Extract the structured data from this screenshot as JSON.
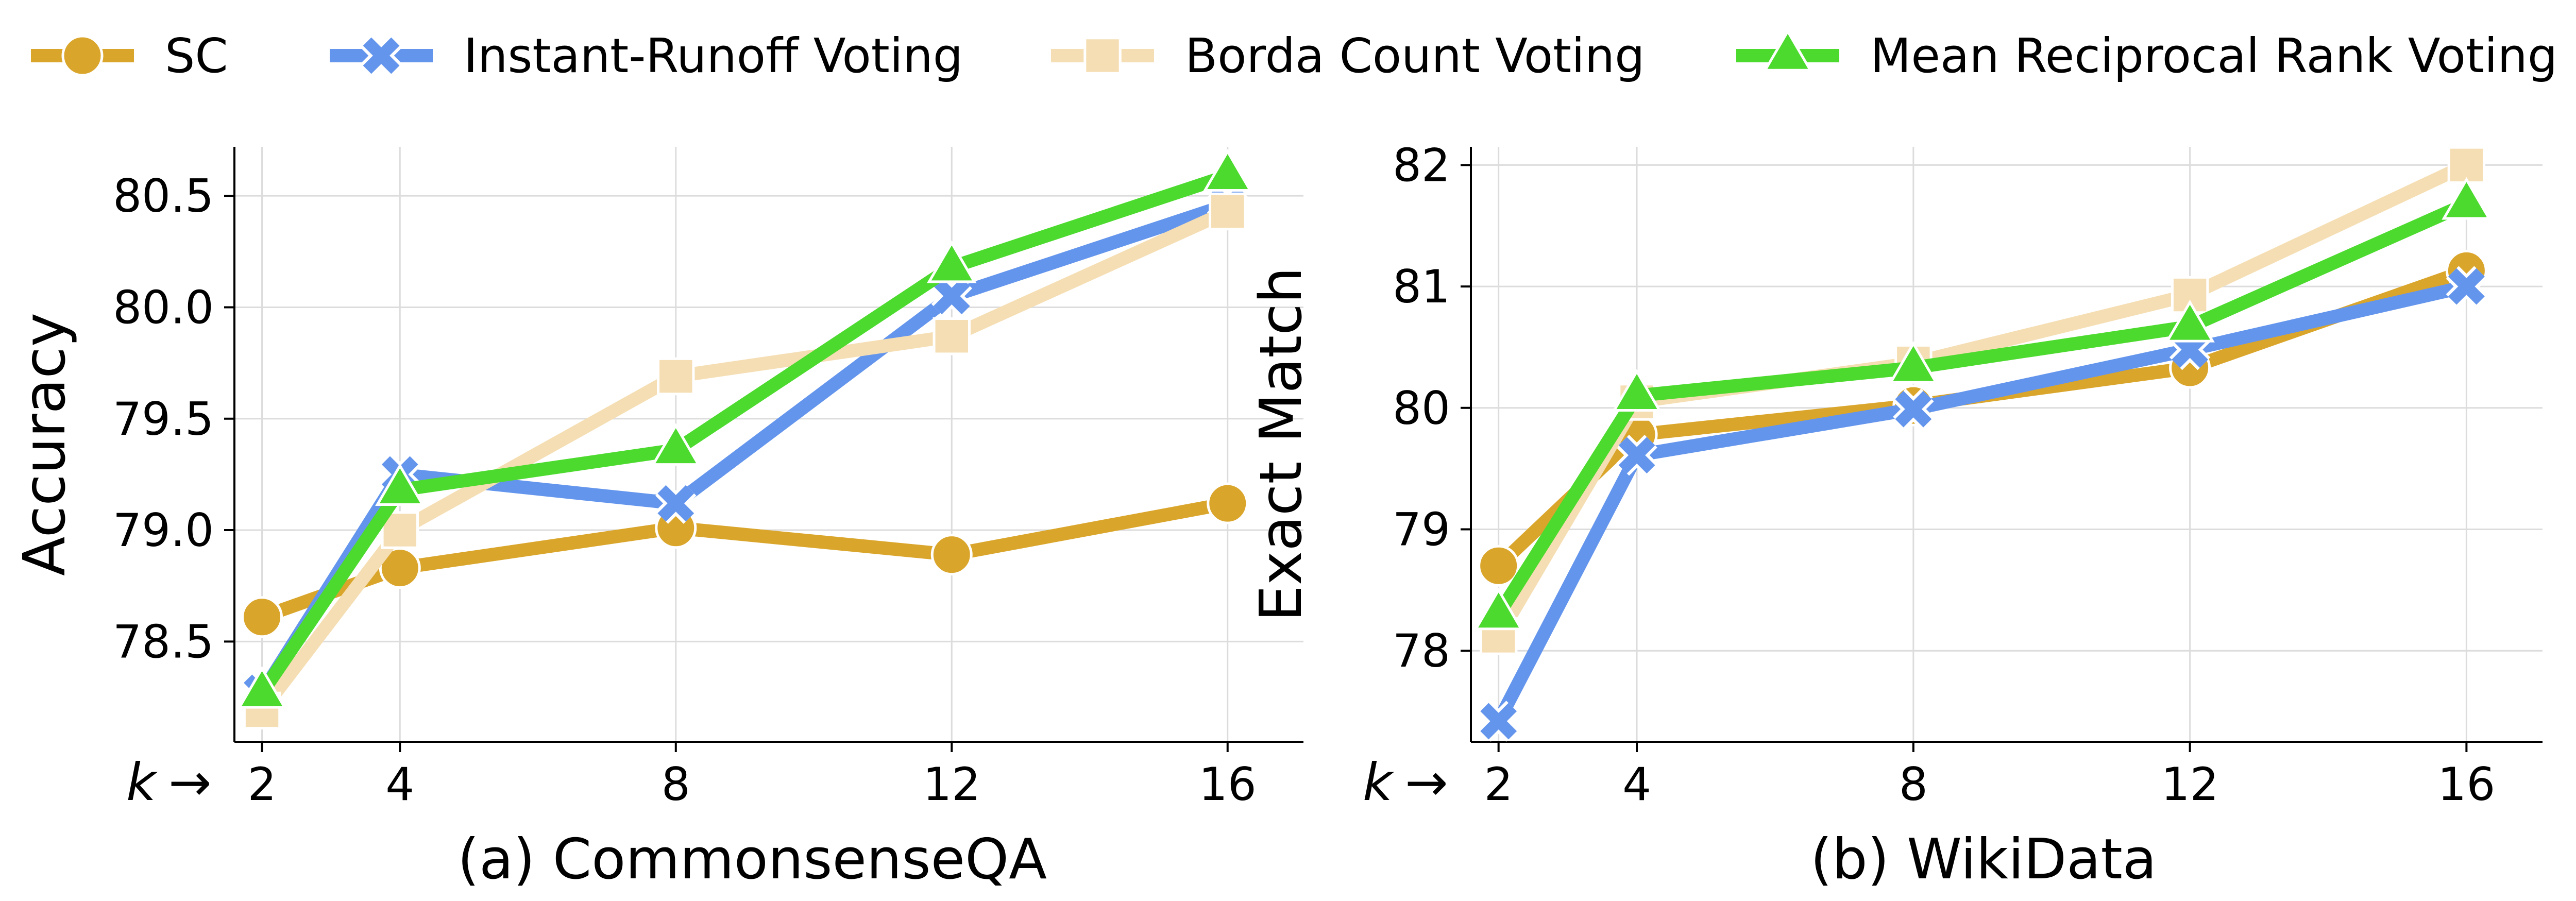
{
  "legend": [
    {
      "label": "SC",
      "color": "#DAA52B",
      "marker": "circle"
    },
    {
      "label": "Instant-Runoff Voting",
      "color": "#6495ED",
      "marker": "x"
    },
    {
      "label": "Borda Count Voting",
      "color": "#F5DEB3",
      "marker": "square"
    },
    {
      "label": "Mean Reciprocal Rank Voting",
      "color": "#4CDA2E",
      "marker": "triangle"
    }
  ],
  "k_label": "k",
  "k_arrow": "→",
  "chart_data": [
    {
      "type": "line",
      "caption": "(a) CommonsenseQA",
      "xlabel": "",
      "ylabel": "Accuracy",
      "x": [
        2,
        4,
        8,
        12,
        16
      ],
      "xticks": [
        "2",
        "4",
        "8",
        "12",
        "16"
      ],
      "xlim": [
        1.6,
        17.1
      ],
      "ylim": [
        78.05,
        80.72
      ],
      "yticks": [
        "78.5",
        "79.0",
        "79.5",
        "80.0",
        "80.5"
      ],
      "ytick_values": [
        78.5,
        79.0,
        79.5,
        80.0,
        80.5
      ],
      "grid": true,
      "series": [
        {
          "name": "SC",
          "values": [
            78.61,
            78.83,
            79.01,
            78.89,
            79.12
          ]
        },
        {
          "name": "Instant-Runoff Voting",
          "values": [
            78.27,
            79.25,
            79.12,
            80.05,
            80.46
          ]
        },
        {
          "name": "Borda Count Voting",
          "values": [
            78.19,
            79.0,
            79.69,
            79.87,
            80.43
          ]
        },
        {
          "name": "Mean Reciprocal Rank Voting",
          "values": [
            78.27,
            79.18,
            79.36,
            80.18,
            80.59
          ]
        }
      ]
    },
    {
      "type": "line",
      "caption": "(b) WikiData",
      "xlabel": "",
      "ylabel": "Exact Match",
      "x": [
        2,
        4,
        8,
        12,
        16
      ],
      "xticks": [
        "2",
        "4",
        "8",
        "12",
        "16"
      ],
      "xlim": [
        1.6,
        17.1
      ],
      "ylim": [
        77.25,
        82.15
      ],
      "yticks": [
        "78",
        "79",
        "80",
        "81",
        "82"
      ],
      "ytick_values": [
        78,
        79,
        80,
        81,
        82
      ],
      "grid": true,
      "series": [
        {
          "name": "SC",
          "values": [
            78.7,
            79.78,
            80.02,
            80.33,
            81.13
          ]
        },
        {
          "name": "Instant-Runoff Voting",
          "values": [
            77.42,
            79.61,
            79.99,
            80.48,
            81.0
          ]
        },
        {
          "name": "Borda Count Voting",
          "values": [
            78.12,
            80.05,
            80.37,
            80.93,
            82.0
          ]
        },
        {
          "name": "Mean Reciprocal Rank Voting",
          "values": [
            78.3,
            80.1,
            80.33,
            80.67,
            81.68
          ]
        }
      ]
    }
  ]
}
